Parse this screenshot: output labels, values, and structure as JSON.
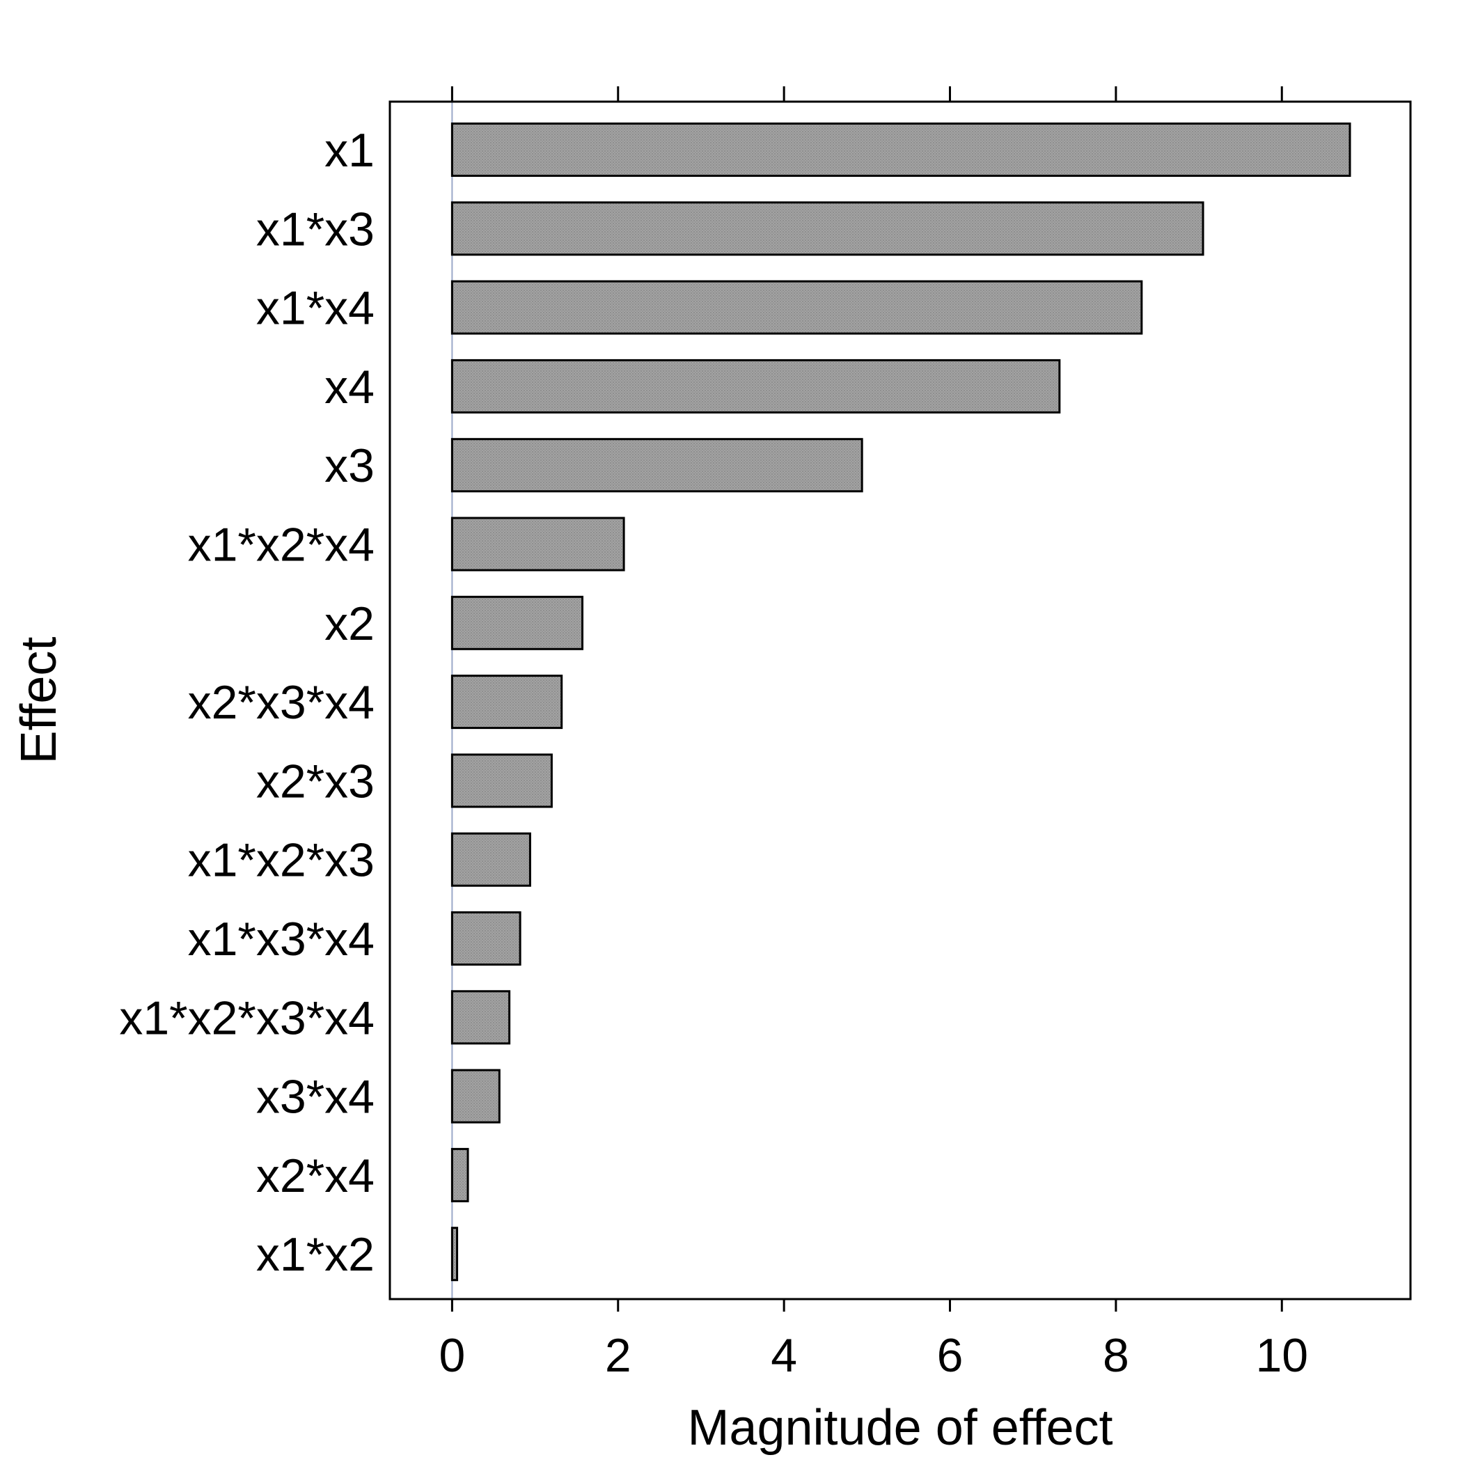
{
  "chart_data": {
    "type": "bar",
    "orientation": "horizontal",
    "title": "",
    "xlabel": "Magnitude of effect",
    "ylabel": "Effect",
    "xlim": [
      -0.75,
      11.55
    ],
    "xticks": [
      0,
      2,
      4,
      6,
      8,
      10
    ],
    "grid": false,
    "reference_line": 0,
    "categories": [
      "x1",
      "x1*x3",
      "x1*x4",
      "x4",
      "x3",
      "x1*x2*x4",
      "x2",
      "x2*x3*x4",
      "x2*x3",
      "x1*x2*x3",
      "x1*x3*x4",
      "x1*x2*x3*x4",
      "x3*x4",
      "x2*x4",
      "x1*x2"
    ],
    "values": [
      10.82,
      9.05,
      8.31,
      7.32,
      4.94,
      2.07,
      1.57,
      1.32,
      1.2,
      0.94,
      0.82,
      0.69,
      0.57,
      0.19,
      0.06
    ],
    "colors": {
      "bar_fill": "#9c9c9c",
      "bar_stroke": "#000000",
      "reference_line": "#9aa8c8",
      "frame": "#000000"
    }
  }
}
